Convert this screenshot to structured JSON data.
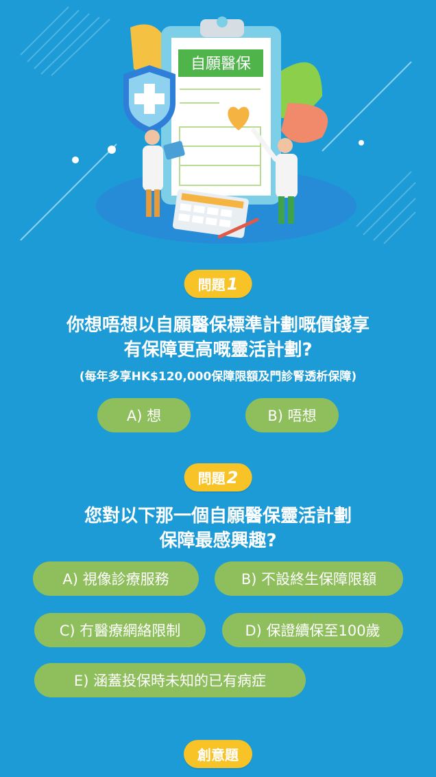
{
  "hero": {
    "clipboard_title": "自願醫保"
  },
  "q1": {
    "badge_label": "問題",
    "badge_number": "1",
    "line1": "你想唔想以自願醫保標準計劃嘅價錢享",
    "line2": "有保障更高嘅靈活計劃?",
    "note": "(每年多享HK$120,000保障限額及門診腎透析保障)",
    "options": [
      "A) 想",
      "B) 唔想"
    ]
  },
  "q2": {
    "badge_label": "問題",
    "badge_number": "2",
    "line1": "您對以下那一個自願醫保靈活計劃",
    "line2": "保障最感興趣?",
    "options": [
      "A) 視像診療服務",
      "B) 不設終生保障限額",
      "C) 冇醫療網絡限制",
      "D) 保證續保至100歲",
      "E) 涵蓋投保時未知的已有病症"
    ]
  },
  "creative": {
    "badge_label": "創意題"
  },
  "colors": {
    "background": "#1d9bd6",
    "badge": "#f7c327",
    "option": "#8fbf5c"
  }
}
